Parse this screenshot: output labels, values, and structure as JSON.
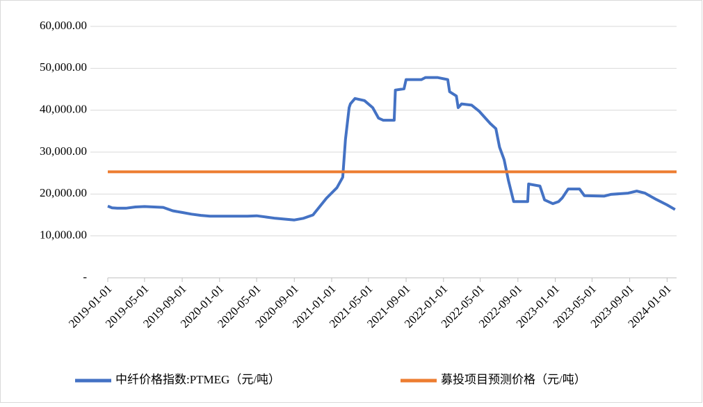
{
  "chart_data": {
    "type": "line",
    "series": [
      {
        "name": "中纤价格指数:PTMEG（元/吨）",
        "color": "#4472c4",
        "x": [
          "2019-01-01",
          "2019-01-15",
          "2019-02-01",
          "2019-03-01",
          "2019-04-01",
          "2019-05-01",
          "2019-06-01",
          "2019-07-01",
          "2019-08-01",
          "2019-09-01",
          "2019-10-01",
          "2019-11-01",
          "2019-12-01",
          "2020-01-01",
          "2020-02-01",
          "2020-03-01",
          "2020-04-01",
          "2020-05-01",
          "2020-06-01",
          "2020-07-01",
          "2020-08-01",
          "2020-09-01",
          "2020-10-01",
          "2020-11-01",
          "2020-12-15",
          "2021-01-18",
          "2021-02-06",
          "2021-02-15",
          "2021-02-27",
          "2021-03-03",
          "2021-03-18",
          "2021-04-18",
          "2021-05-15",
          "2021-06-03",
          "2021-06-18",
          "2021-07-24",
          "2021-07-28",
          "2021-08-25",
          "2021-09-01",
          "2021-10-21",
          "2021-11-03",
          "2021-12-12",
          "2022-01-15",
          "2022-01-21",
          "2022-02-12",
          "2022-02-18",
          "2022-03-01",
          "2022-04-03",
          "2022-04-27",
          "2022-05-18",
          "2022-06-03",
          "2022-06-21",
          "2022-07-03",
          "2022-07-18",
          "2022-08-01",
          "2022-08-18",
          "2022-10-03",
          "2022-10-06",
          "2022-11-12",
          "2022-11-27",
          "2022-12-24",
          "2023-01-12",
          "2023-01-24",
          "2023-02-12",
          "2023-03-21",
          "2023-04-06",
          "2023-06-09",
          "2023-07-01",
          "2023-08-27",
          "2023-09-24",
          "2023-10-21",
          "2023-11-27",
          "2024-01-01",
          "2024-01-27"
        ],
        "values": [
          17100,
          16700,
          16600,
          16600,
          16900,
          17000,
          16900,
          16800,
          16000,
          15600,
          15200,
          14900,
          14700,
          14700,
          14700,
          14700,
          14700,
          14800,
          14500,
          14200,
          14000,
          13800,
          14200,
          15000,
          19000,
          21500,
          24000,
          33000,
          40600,
          41500,
          42800,
          42300,
          40600,
          38100,
          37600,
          37600,
          44800,
          45100,
          47300,
          47300,
          47800,
          47800,
          47300,
          44400,
          43400,
          40600,
          41500,
          41200,
          39800,
          38100,
          36800,
          35600,
          31200,
          28200,
          23200,
          18200,
          18200,
          22400,
          21900,
          18600,
          17700,
          18200,
          19100,
          21200,
          21200,
          19600,
          19500,
          19900,
          20200,
          20700,
          20200,
          18700,
          17400,
          16300
        ]
      },
      {
        "name": "募投项目预测价格（元/吨）",
        "color": "#ed7d31",
        "x": [
          "2019-01-01",
          "2024-02-01"
        ],
        "values": [
          25300,
          25300
        ]
      }
    ],
    "xlim": [
      "2019-01-01",
      "2024-02-01"
    ],
    "xticks": [
      "2019-01-01",
      "2019-05-01",
      "2019-09-01",
      "2020-01-01",
      "2020-05-01",
      "2020-09-01",
      "2021-01-01",
      "2021-05-01",
      "2021-09-01",
      "2022-01-01",
      "2022-05-01",
      "2022-09-01",
      "2023-01-01",
      "2023-05-01",
      "2023-09-01",
      "2024-01-01"
    ],
    "ylim": [
      0,
      60000
    ],
    "yticks": [
      {
        "value": 0,
        "label": "-"
      },
      {
        "value": 10000,
        "label": "10,000.00"
      },
      {
        "value": 20000,
        "label": "20,000.00"
      },
      {
        "value": 30000,
        "label": "30,000.00"
      },
      {
        "value": 40000,
        "label": "40,000.00"
      },
      {
        "value": 50000,
        "label": "50,000.00"
      },
      {
        "value": 60000,
        "label": "60,000.00"
      }
    ],
    "grid": true,
    "legend": "bottom"
  }
}
